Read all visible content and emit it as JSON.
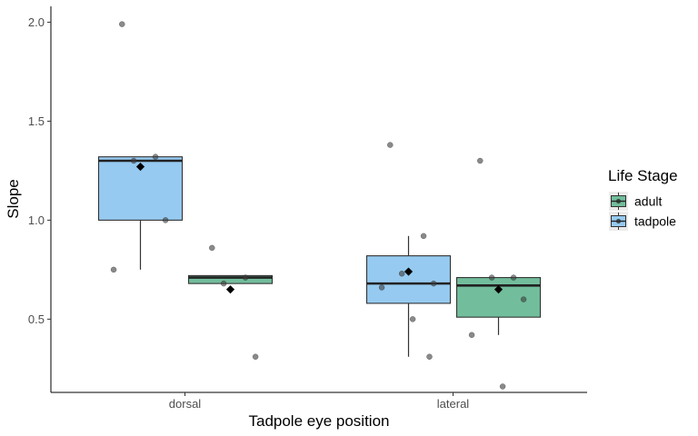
{
  "chart_data": {
    "type": "box",
    "xlabel": "Tadpole eye position",
    "ylabel": "Slope",
    "categories": [
      "dorsal",
      "lateral"
    ],
    "ylim": [
      0.13,
      2.08
    ],
    "yticks": [
      0.5,
      1.0,
      1.5,
      2.0
    ],
    "ytick_labels": [
      "0.5",
      "1.0",
      "1.5",
      "2.0"
    ],
    "grid": false,
    "legend": {
      "title": "Life Stage",
      "position": "right",
      "entries": [
        {
          "label": "adult",
          "color": "#72bd9c"
        },
        {
          "label": "tadpole",
          "color": "#96caf0"
        }
      ]
    },
    "series": [
      {
        "name": "tadpole",
        "color": "#96caf0",
        "boxes": [
          {
            "category": "dorsal",
            "whisker_low": 0.75,
            "q1": 1.0,
            "median": 1.3,
            "q3": 1.32,
            "whisker_high": 1.32,
            "mean": 1.27,
            "points": [
              1.99,
              1.32,
              1.3,
              1.0,
              0.75
            ]
          },
          {
            "category": "lateral",
            "whisker_low": 0.31,
            "q1": 0.58,
            "median": 0.68,
            "q3": 0.82,
            "whisker_high": 0.92,
            "mean": 0.74,
            "points": [
              1.38,
              0.92,
              0.73,
              0.68,
              0.66,
              0.5,
              0.31
            ]
          }
        ]
      },
      {
        "name": "adult",
        "color": "#72bd9c",
        "boxes": [
          {
            "category": "dorsal",
            "whisker_low": 0.68,
            "q1": 0.68,
            "median": 0.71,
            "q3": 0.72,
            "whisker_high": 0.72,
            "mean": 0.65,
            "points": [
              0.86,
              0.71,
              0.68,
              0.31
            ]
          },
          {
            "category": "lateral",
            "whisker_low": 0.42,
            "q1": 0.51,
            "median": 0.67,
            "q3": 0.71,
            "whisker_high": 0.71,
            "mean": 0.65,
            "points": [
              1.3,
              0.71,
              0.71,
              0.6,
              0.42,
              0.16
            ]
          }
        ]
      }
    ]
  }
}
